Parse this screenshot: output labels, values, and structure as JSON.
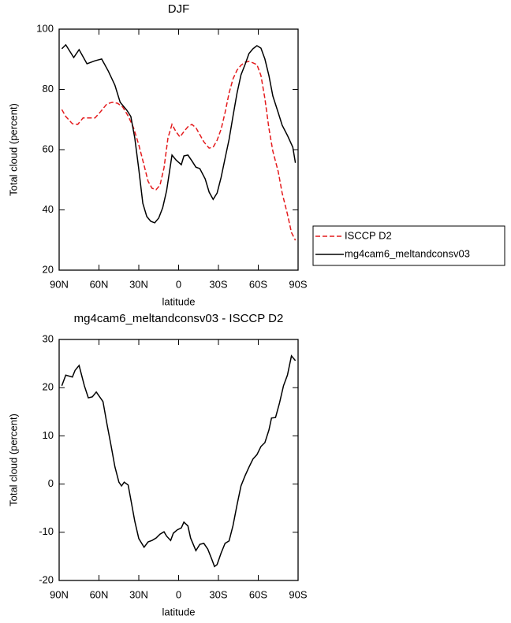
{
  "chart_data": [
    {
      "type": "line",
      "title": "DJF",
      "xlabel": "latitude",
      "ylabel": "Total cloud (percent)",
      "xlim": [
        90,
        -90
      ],
      "xticks": [
        {
          "value": 90,
          "label": "90N"
        },
        {
          "value": 60,
          "label": "60N"
        },
        {
          "value": 30,
          "label": "30N"
        },
        0,
        {
          "value": -30,
          "label": "30S"
        },
        {
          "value": -60,
          "label": "60S"
        },
        {
          "value": -90,
          "label": "90S"
        }
      ],
      "ylim": [
        20,
        100
      ],
      "yticks": [
        20,
        40,
        60,
        80,
        100
      ],
      "legend": "right",
      "series": [
        {
          "name": "ISCCP D2",
          "color": "#e41a1c",
          "dash": true,
          "x": [
            88,
            85,
            80,
            76,
            72,
            67,
            63,
            59,
            54,
            50,
            46,
            42,
            38,
            34,
            30,
            26,
            23,
            20,
            17,
            14,
            11,
            8,
            5,
            2,
            -1,
            -4,
            -7,
            -10,
            -13,
            -16,
            -19,
            -23,
            -26,
            -29,
            -32,
            -35,
            -38,
            -41,
            -44,
            -47,
            -50,
            -53,
            -56,
            -59,
            -62,
            -65,
            -68,
            -71,
            -75,
            -78,
            -82,
            -85,
            -88
          ],
          "values": [
            73.3,
            71,
            68.6,
            68.4,
            70.5,
            70.5,
            70.5,
            72.5,
            75.2,
            75.7,
            75.4,
            74.1,
            71.2,
            67.3,
            61.6,
            54.8,
            49.5,
            47.2,
            46.7,
            48.2,
            54,
            63.9,
            68.4,
            66,
            64.2,
            66,
            67.6,
            68.4,
            67.3,
            65,
            62.6,
            60.5,
            60.8,
            63.1,
            66.8,
            72.3,
            78.8,
            83.5,
            86.4,
            88,
            89,
            89.3,
            88.8,
            88.2,
            84.6,
            77,
            67.1,
            59.5,
            52.7,
            45.6,
            38.6,
            32.5,
            29.9
          ]
        },
        {
          "name": "mg4cam6_meltandconsv03",
          "color": "#000000",
          "dash": false,
          "x": [
            88,
            85,
            79,
            75,
            69,
            63,
            58,
            53,
            48,
            44,
            39,
            36,
            33,
            30,
            27,
            24,
            21,
            18,
            15,
            12,
            9,
            5,
            2,
            -2,
            -4,
            -7,
            -10,
            -13,
            -16,
            -20,
            -23,
            -26,
            -29,
            -32,
            -35,
            -38,
            -41,
            -44,
            -47,
            -50,
            -53,
            -56,
            -59,
            -62,
            -65,
            -68,
            -71,
            -75,
            -78,
            -82,
            -86,
            -88
          ],
          "values": [
            93.5,
            94.8,
            90.6,
            93.2,
            88.5,
            89.5,
            90.1,
            86.1,
            81.4,
            75.7,
            73.1,
            71,
            63.9,
            53.5,
            42.2,
            37.8,
            36.2,
            35.7,
            37.3,
            40.7,
            46.4,
            58.2,
            56.6,
            55,
            57.9,
            58.2,
            56.3,
            54.2,
            53.7,
            50.3,
            45.9,
            43.5,
            45.6,
            50.8,
            57.1,
            63.4,
            71.2,
            78.8,
            84.8,
            88.2,
            91.9,
            93.5,
            94.5,
            93.7,
            90.1,
            84.6,
            77.8,
            72.3,
            68.1,
            64.7,
            60.8,
            55.6
          ]
        }
      ]
    },
    {
      "type": "line",
      "title": "mg4cam6_meltandconsv03 - ISCCP D2",
      "xlabel": "latitude",
      "ylabel": "Total cloud (percent)",
      "xlim": [
        90,
        -90
      ],
      "xticks": [
        {
          "value": 90,
          "label": "90N"
        },
        {
          "value": 60,
          "label": "60N"
        },
        {
          "value": 30,
          "label": "30N"
        },
        0,
        {
          "value": -30,
          "label": "30S"
        },
        {
          "value": -60,
          "label": "60S"
        },
        {
          "value": -90,
          "label": "90S"
        }
      ],
      "ylim": [
        -20,
        30
      ],
      "yticks": [
        -20,
        -10,
        0,
        10,
        20,
        30
      ],
      "color": "#000000",
      "x": [
        88,
        85,
        80,
        78,
        75,
        71,
        68,
        65,
        62,
        57,
        54,
        51,
        48,
        45,
        43,
        41,
        38,
        36,
        33,
        30,
        26,
        23,
        20,
        17,
        14,
        11,
        9,
        6,
        4,
        1,
        -2,
        -4,
        -7,
        -9,
        -13,
        -16,
        -19,
        -22,
        -25,
        -27,
        -29,
        -32,
        -35,
        -38,
        -41,
        -44,
        -47,
        -50,
        -53,
        -56,
        -59,
        -62,
        -65,
        -68,
        -70,
        -73,
        -76,
        -79,
        -82,
        -85,
        -88
      ],
      "values": [
        20.4,
        22.6,
        22.2,
        23.6,
        24.6,
        20.4,
        17.9,
        18.1,
        19.1,
        17.1,
        12.5,
        8.1,
        3.6,
        0.4,
        -0.4,
        0.4,
        -0.2,
        -3.2,
        -7.7,
        -11.3,
        -13.1,
        -12,
        -11.7,
        -11.2,
        -10.4,
        -9.9,
        -10.8,
        -11.7,
        -10.2,
        -9.5,
        -9.1,
        -7.9,
        -8.7,
        -11.2,
        -13.8,
        -12.5,
        -12.3,
        -13.5,
        -15.6,
        -17.1,
        -16.7,
        -14.3,
        -12.3,
        -11.8,
        -8.6,
        -4.3,
        -0.4,
        1.7,
        3.5,
        5.2,
        6.1,
        7.8,
        8.6,
        11.2,
        13.7,
        13.8,
        16.8,
        20.4,
        22.6,
        26.6,
        25.6
      ]
    }
  ]
}
